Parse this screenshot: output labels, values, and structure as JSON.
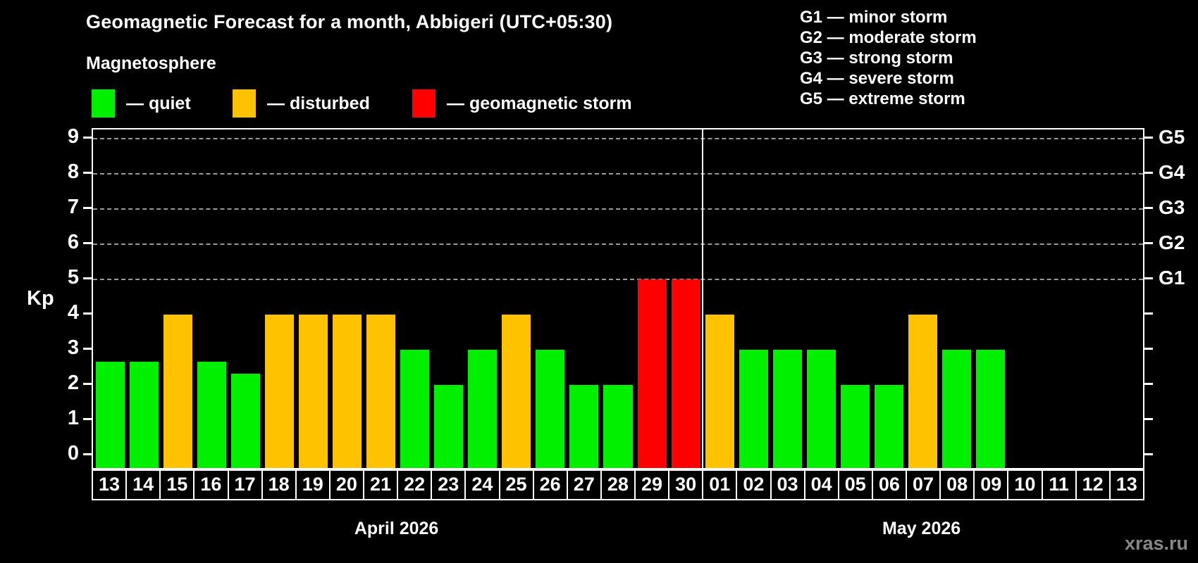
{
  "title": "Geomagnetic Forecast for a month, Abbigeri (UTC+05:30)",
  "subtitle": "Magnetosphere",
  "watermark": "xras.ru",
  "colors": {
    "quiet": "#00f000",
    "disturbed": "#ffc200",
    "storm": "#ff0000",
    "background": "#000000",
    "text": "#ffffff",
    "grid": "#999999",
    "watermark": "#878787"
  },
  "legend": {
    "items": [
      {
        "status": "quiet",
        "label": "— quiet"
      },
      {
        "status": "disturbed",
        "label": "— disturbed"
      },
      {
        "status": "storm",
        "label": "— geomagnetic storm"
      }
    ]
  },
  "g_legend": [
    "G1 — minor storm",
    "G2 — moderate storm",
    "G3 — strong storm",
    "G4 — severe storm",
    "G5 — extreme storm"
  ],
  "chart_data": {
    "type": "bar",
    "title": "Geomagnetic Forecast for a month, Abbigeri (UTC+05:30)",
    "xlabel": "",
    "ylabel": "Kp",
    "ylim": [
      -0.4,
      9.4
    ],
    "yticks": [
      0,
      1,
      2,
      3,
      4,
      5,
      6,
      7,
      8,
      9
    ],
    "gridlines_at": [
      5,
      6,
      7,
      8,
      9
    ],
    "right_axis_labels": {
      "5": "G1",
      "6": "G2",
      "7": "G3",
      "8": "G4",
      "9": "G5"
    },
    "legend_position": "top-left",
    "months": [
      {
        "label": "April 2026",
        "days": [
          {
            "day": "13",
            "kp": 2.67,
            "status": "quiet"
          },
          {
            "day": "14",
            "kp": 2.67,
            "status": "quiet"
          },
          {
            "day": "15",
            "kp": 4,
            "status": "disturbed"
          },
          {
            "day": "16",
            "kp": 2.67,
            "status": "quiet"
          },
          {
            "day": "17",
            "kp": 2.33,
            "status": "quiet"
          },
          {
            "day": "18",
            "kp": 4,
            "status": "disturbed"
          },
          {
            "day": "19",
            "kp": 4,
            "status": "disturbed"
          },
          {
            "day": "20",
            "kp": 4,
            "status": "disturbed"
          },
          {
            "day": "21",
            "kp": 4,
            "status": "disturbed"
          },
          {
            "day": "22",
            "kp": 3,
            "status": "quiet"
          },
          {
            "day": "23",
            "kp": 2,
            "status": "quiet"
          },
          {
            "day": "24",
            "kp": 3,
            "status": "quiet"
          },
          {
            "day": "25",
            "kp": 4,
            "status": "disturbed"
          },
          {
            "day": "26",
            "kp": 3,
            "status": "quiet"
          },
          {
            "day": "27",
            "kp": 2,
            "status": "quiet"
          },
          {
            "day": "28",
            "kp": 2,
            "status": "quiet"
          },
          {
            "day": "29",
            "kp": 5,
            "status": "storm"
          },
          {
            "day": "30",
            "kp": 5,
            "status": "storm"
          }
        ]
      },
      {
        "label": "May 2026",
        "days": [
          {
            "day": "01",
            "kp": 4,
            "status": "disturbed"
          },
          {
            "day": "02",
            "kp": 3,
            "status": "quiet"
          },
          {
            "day": "03",
            "kp": 3,
            "status": "quiet"
          },
          {
            "day": "04",
            "kp": 3,
            "status": "quiet"
          },
          {
            "day": "05",
            "kp": 2,
            "status": "quiet"
          },
          {
            "day": "06",
            "kp": 2,
            "status": "quiet"
          },
          {
            "day": "07",
            "kp": 4,
            "status": "disturbed"
          },
          {
            "day": "08",
            "kp": 3,
            "status": "quiet"
          },
          {
            "day": "09",
            "kp": 3,
            "status": "quiet"
          },
          {
            "day": "10",
            "kp": null,
            "status": null
          },
          {
            "day": "11",
            "kp": null,
            "status": null
          },
          {
            "day": "12",
            "kp": null,
            "status": null
          },
          {
            "day": "13",
            "kp": null,
            "status": null
          }
        ]
      }
    ]
  }
}
